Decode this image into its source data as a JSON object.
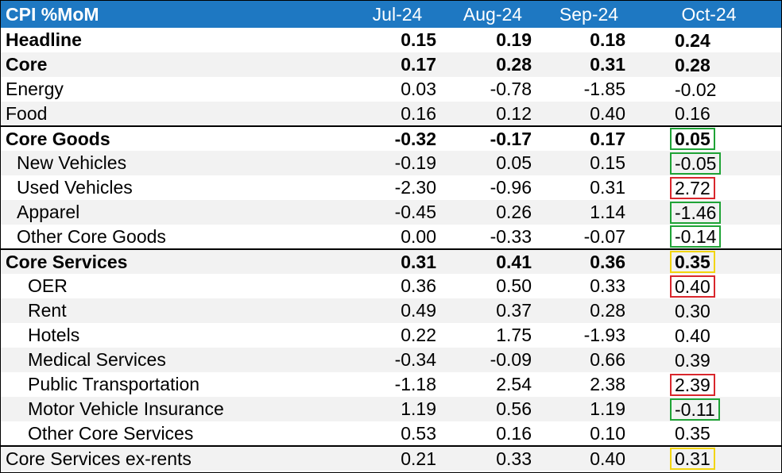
{
  "header": {
    "title": "CPI %MoM",
    "months": [
      "Jul-24",
      "Aug-24",
      "Sep-24",
      "Oct-24"
    ]
  },
  "highlight_colors": {
    "green": "#1fa336",
    "red": "#d9262c",
    "yellow": "#f2d50f"
  },
  "header_color": "#1e78c2",
  "rows": [
    {
      "label": "Headline",
      "values": [
        "0.15",
        "0.19",
        "0.18",
        "0.24"
      ],
      "bold": true,
      "indent": 0,
      "highlight": ""
    },
    {
      "label": "Core",
      "values": [
        "0.17",
        "0.28",
        "0.31",
        "0.28"
      ],
      "bold": true,
      "indent": 0,
      "highlight": ""
    },
    {
      "label": "Energy",
      "values": [
        "0.03",
        "-0.78",
        "-1.85",
        "-0.02"
      ],
      "bold": false,
      "indent": 0,
      "highlight": ""
    },
    {
      "label": "Food",
      "values": [
        "0.16",
        "0.12",
        "0.40",
        "0.16"
      ],
      "bold": false,
      "indent": 0,
      "highlight": ""
    },
    {
      "label": "Core Goods",
      "values": [
        "-0.32",
        "-0.17",
        "0.17",
        "0.05"
      ],
      "bold": true,
      "indent": 0,
      "highlight": "green",
      "section_start": true
    },
    {
      "label": "New Vehicles",
      "values": [
        "-0.19",
        "0.05",
        "0.15",
        "-0.05"
      ],
      "bold": false,
      "indent": 1,
      "highlight": "green"
    },
    {
      "label": "Used Vehicles",
      "values": [
        "-2.30",
        "-0.96",
        "0.31",
        "2.72"
      ],
      "bold": false,
      "indent": 1,
      "highlight": "red"
    },
    {
      "label": "Apparel",
      "values": [
        "-0.45",
        "0.26",
        "1.14",
        "-1.46"
      ],
      "bold": false,
      "indent": 1,
      "highlight": "green"
    },
    {
      "label": "Other Core Goods",
      "values": [
        "0.00",
        "-0.33",
        "-0.07",
        "-0.14"
      ],
      "bold": false,
      "indent": 1,
      "highlight": "green"
    },
    {
      "label": "Core Services",
      "values": [
        "0.31",
        "0.41",
        "0.36",
        "0.35"
      ],
      "bold": true,
      "indent": 0,
      "highlight": "yellow",
      "section_start": true
    },
    {
      "label": "OER",
      "values": [
        "0.36",
        "0.50",
        "0.33",
        "0.40"
      ],
      "bold": false,
      "indent": 2,
      "highlight": "red"
    },
    {
      "label": "Rent",
      "values": [
        "0.49",
        "0.37",
        "0.28",
        "0.30"
      ],
      "bold": false,
      "indent": 2,
      "highlight": ""
    },
    {
      "label": "Hotels",
      "values": [
        "0.22",
        "1.75",
        "-1.93",
        "0.40"
      ],
      "bold": false,
      "indent": 2,
      "highlight": ""
    },
    {
      "label": "Medical Services",
      "values": [
        "-0.34",
        "-0.09",
        "0.66",
        "0.39"
      ],
      "bold": false,
      "indent": 2,
      "highlight": ""
    },
    {
      "label": "Public Transportation",
      "values": [
        "-1.18",
        "2.54",
        "2.38",
        "2.39"
      ],
      "bold": false,
      "indent": 2,
      "highlight": "red"
    },
    {
      "label": "Motor Vehicle Insurance",
      "values": [
        "1.19",
        "0.56",
        "1.19",
        "-0.11"
      ],
      "bold": false,
      "indent": 2,
      "highlight": "green"
    },
    {
      "label": "Other Core Services",
      "values": [
        "0.53",
        "0.16",
        "0.10",
        "0.35"
      ],
      "bold": false,
      "indent": 2,
      "highlight": ""
    },
    {
      "label": "Core Services ex-rents",
      "values": [
        "0.21",
        "0.33",
        "0.40",
        "0.31"
      ],
      "bold": false,
      "indent": 0,
      "highlight": "yellow",
      "section_start": true
    }
  ]
}
